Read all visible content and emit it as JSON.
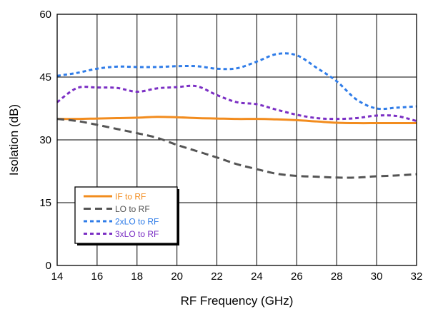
{
  "chart_data": {
    "type": "line",
    "xlabel": "RF Frequency (GHz)",
    "ylabel": "Isolation (dB)",
    "xlim": [
      14,
      32
    ],
    "ylim": [
      0,
      60
    ],
    "xticks": [
      14,
      16,
      18,
      20,
      22,
      24,
      26,
      28,
      30,
      32
    ],
    "yticks": [
      0,
      15,
      30,
      45,
      60
    ],
    "grid": true,
    "legend_position": "bottom-left",
    "series": [
      {
        "name": "IF to RF",
        "color": "#F28C1E",
        "dash": "solid",
        "x": [
          14,
          15,
          16,
          17,
          18,
          19,
          20,
          21,
          22,
          23,
          24,
          25,
          26,
          27,
          28,
          29,
          30,
          31,
          32
        ],
        "y": [
          35,
          35,
          35.1,
          35.2,
          35.3,
          35.5,
          35.4,
          35.2,
          35.1,
          35,
          35,
          34.9,
          34.7,
          34.4,
          34.1,
          34,
          34,
          34,
          34
        ]
      },
      {
        "name": "LO to RF",
        "color": "#555555",
        "dash": "long-dash",
        "x": [
          14,
          15,
          16,
          17,
          18,
          19,
          20,
          21,
          22,
          23,
          24,
          25,
          26,
          27,
          28,
          29,
          30,
          31,
          32
        ],
        "y": [
          35,
          34.5,
          33.6,
          32.6,
          31.6,
          30.5,
          28.8,
          27.3,
          25.8,
          24.2,
          23,
          21.9,
          21.4,
          21.2,
          21,
          21,
          21.3,
          21.5,
          21.8
        ]
      },
      {
        "name": "2xLO to RF",
        "color": "#2F7CE8",
        "dash": "dotted",
        "x": [
          14,
          15,
          16,
          17,
          18,
          19,
          20,
          21,
          22,
          23,
          24,
          25,
          26,
          27,
          28,
          29,
          30,
          31,
          32
        ],
        "y": [
          45.3,
          46,
          47,
          47.5,
          47.4,
          47.4,
          47.6,
          47.6,
          47,
          47.1,
          48.7,
          50.5,
          50.2,
          47.2,
          44,
          39.6,
          37.5,
          37.7,
          38
        ]
      },
      {
        "name": "3xLO to RF",
        "color": "#7B2FC4",
        "dash": "dotted",
        "x": [
          14,
          15,
          16,
          17,
          18,
          19,
          20,
          21,
          22,
          23,
          24,
          25,
          26,
          27,
          28,
          29,
          30,
          31,
          32
        ],
        "y": [
          39,
          42.4,
          42.5,
          42.4,
          41.5,
          42.3,
          42.6,
          42.8,
          40.7,
          39,
          38.5,
          37.2,
          36,
          35.2,
          35,
          35.2,
          35.8,
          35.7,
          34.5
        ]
      }
    ]
  }
}
